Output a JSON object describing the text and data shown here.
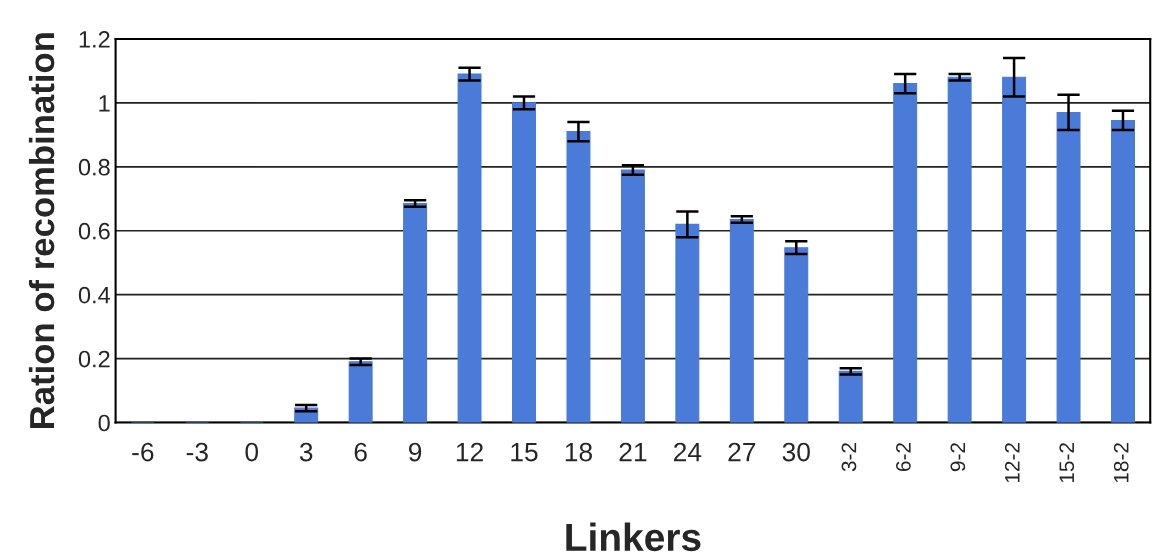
{
  "chart_data": {
    "type": "bar",
    "xlabel": "Linkers",
    "ylabel": "Ration of recombination",
    "categories": [
      "-6",
      "-3",
      "0",
      "3",
      "6",
      "9",
      "12",
      "15",
      "18",
      "21",
      "24",
      "27",
      "30",
      "3-2",
      "6-2",
      "9-2",
      "12-2",
      "15-2",
      "18-2"
    ],
    "values": [
      0,
      0,
      0,
      0.045,
      0.19,
      0.685,
      1.09,
      1.0,
      0.91,
      0.79,
      0.62,
      0.635,
      0.547,
      0.16,
      1.06,
      1.08,
      1.08,
      0.97,
      0.945
    ],
    "errors": [
      null,
      null,
      null,
      0.01,
      0.01,
      0.01,
      0.02,
      0.02,
      0.03,
      0.015,
      0.04,
      0.01,
      0.02,
      0.01,
      0.03,
      0.01,
      0.06,
      0.055,
      0.03
    ],
    "color": "#4a7bd8",
    "ylim": [
      0,
      1.2
    ],
    "yticks": [
      0,
      0.2,
      0.4,
      0.6,
      0.8,
      1,
      1.2
    ],
    "grid": "y",
    "legend": false
  }
}
